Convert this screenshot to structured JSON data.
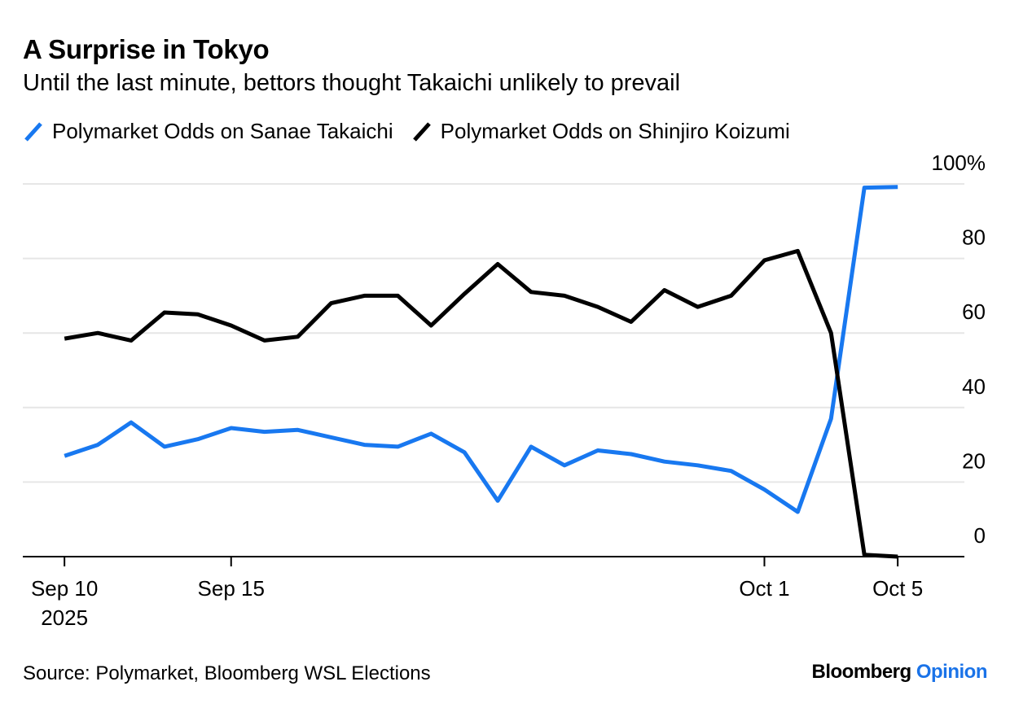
{
  "chart_data": {
    "type": "line",
    "title": "A Surprise in Tokyo",
    "subtitle": "Until the last minute, bettors thought Takaichi unlikely to prevail",
    "x_days": [
      0,
      1,
      2,
      3,
      4,
      5,
      6,
      7,
      8,
      9,
      10,
      11,
      12,
      13,
      14,
      15,
      16,
      17,
      18,
      19,
      20,
      21,
      22,
      23,
      24,
      25
    ],
    "series": [
      {
        "name": "Polymarket Odds on Sanae Takaichi",
        "color": "#1878f0",
        "values": [
          27,
          30,
          36,
          29.5,
          31.5,
          34.5,
          33.5,
          34,
          32,
          30,
          29.5,
          33,
          28,
          15,
          29.5,
          24.5,
          28.5,
          27.5,
          25.5,
          24.5,
          23,
          18,
          12,
          37,
          99,
          99.2
        ]
      },
      {
        "name": "Polymarket Odds on Shinjiro Koizumi",
        "color": "#000000",
        "values": [
          58.5,
          60,
          58,
          65.5,
          65,
          62,
          58,
          59,
          68,
          70,
          70,
          62,
          70.5,
          78.5,
          71,
          70,
          67,
          63,
          71.5,
          67,
          70,
          79.5,
          82,
          60,
          0.5,
          0
        ]
      }
    ],
    "ylim": [
      0,
      100
    ],
    "xlim": [
      -1.25,
      27
    ],
    "y_ticks": [
      0,
      20,
      40,
      60,
      80,
      100
    ],
    "y_tick_labels": [
      "0",
      "20",
      "40",
      "60",
      "80",
      "100%"
    ],
    "x_ticks": [
      {
        "day": 0,
        "label": "Sep 10",
        "sublabel": "2025"
      },
      {
        "day": 5,
        "label": "Sep 15",
        "sublabel": ""
      },
      {
        "day": 21,
        "label": "Oct 1",
        "sublabel": ""
      },
      {
        "day": 25,
        "label": "Oct 5",
        "sublabel": ""
      }
    ],
    "grid": true,
    "legend_position": "top-left"
  },
  "source": "Source: Polymarket, Bloomberg WSL Elections",
  "brand": {
    "main": "Bloomberg",
    "accent": "Opinion"
  }
}
